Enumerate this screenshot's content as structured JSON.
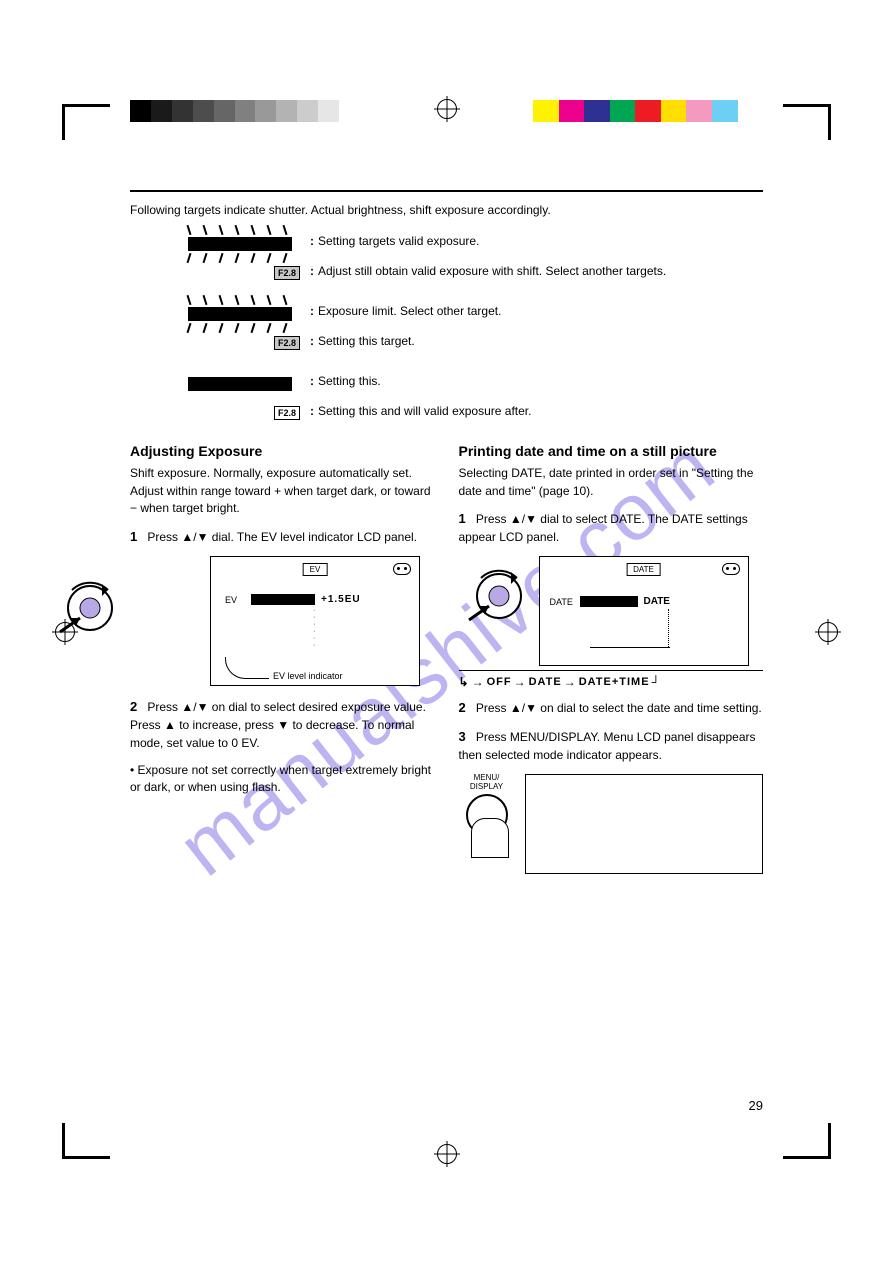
{
  "colors": {
    "grayscale": [
      "#000000",
      "#1a1a1a",
      "#333333",
      "#4d4d4d",
      "#666666",
      "#808080",
      "#999999",
      "#b3b3b3",
      "#cccccc",
      "#e6e6e6",
      "#ffffff"
    ],
    "process": [
      "#fff200",
      "#ec008c",
      "#2e3192",
      "#00a651",
      "#ed1c24",
      "#ffde00",
      "#f49ac1",
      "#6dcff6",
      "#ffffff"
    ]
  },
  "watermark": "manualshive.com",
  "section_title_rule": true,
  "intro": "Following targets indicate shutter. Actual brightness, shift exposure accordingly.",
  "page_number": "29",
  "indicators": [
    {
      "flashing": true,
      "lines": [
        "Setting      targets valid exposure.",
        "Adjust still      obtain valid exposure with shift. Select another targets."
      ],
      "box_label": "F2.8",
      "box_gray": true
    },
    {
      "flashing": true,
      "lines": [
        "Exposure         limit. Select other  target.",
        "Setting this target."
      ],
      "box_label": "F2.8",
      "box_gray": true
    },
    {
      "flashing": false,
      "lines": [
        "Setting this.",
        "Setting this and   will     valid exposure after."
      ],
      "box_label": "F2.8",
      "box_gray": false
    }
  ],
  "left_col": {
    "heading": "Adjusting Exposure",
    "p1": "Shift exposure. Normally, exposure automatically set. Adjust within range toward + when target dark, or toward − when target bright.",
    "step1_num": "1",
    "step1": "Press ▲/▼   dial. The EV level indicator        LCD panel.",
    "lcd": {
      "title_badge": "EV",
      "face": true,
      "row_label": "EV",
      "value": "+1.5EU",
      "curve_label": "EV level indicator"
    },
    "step2_num": "2",
    "step2": "Press ▲/▼ on   dial to select desired exposure value. Press ▲ to increase, press ▼ to decrease. To      normal mode, set value to 0 EV.",
    "note": "• Exposure          not set correctly when target extremely bright or dark, or when using flash."
  },
  "right_col": {
    "heading": "Printing date and time on a still picture",
    "p1": "Selecting DATE, date      printed in order set in \"Setting the date and time\" (page 10).",
    "step1_num": "1",
    "step1": "Press ▲/▼      dial to select DATE. The DATE     settings appear    LCD panel.",
    "lcd": {
      "title_badge": "DATE",
      "row_label": "DATE",
      "value": "DATE"
    },
    "mode_cycle": [
      "OFF",
      "DATE",
      "DATE+TIME"
    ],
    "step2_num": "2",
    "step2": "Press ▲/▼ on dial to select the date and time setting.",
    "step3_num": "3",
    "step3": "Press MENU/DISPLAY. Menu    LCD panel disappears then selected mode indicator appears.",
    "menu_label": "MENU/\nDISPLAY"
  }
}
